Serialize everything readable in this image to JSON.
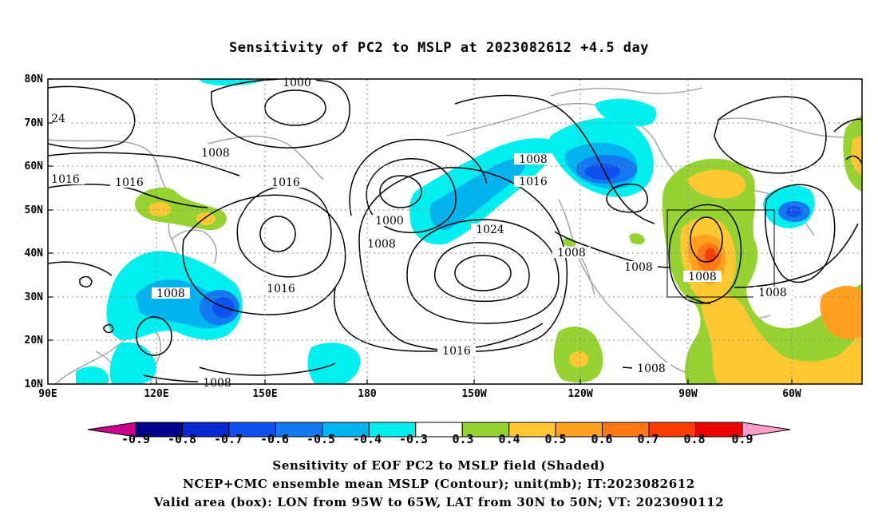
{
  "title": "Sensitivity of PC2 to MSLP at 2023082612 +4.5 day",
  "map": {
    "lat_labels": [
      "80N",
      "70N",
      "60N",
      "50N",
      "40N",
      "30N",
      "20N",
      "10N"
    ],
    "lon_labels": [
      "90E",
      "120E",
      "150E",
      "180",
      "150W",
      "120W",
      "90W",
      "60W"
    ],
    "contour_labels": [
      {
        "text": "1000"
      },
      {
        "text": "24"
      },
      {
        "text": "1008"
      },
      {
        "text": "1016"
      },
      {
        "text": "1016"
      },
      {
        "text": "1016"
      },
      {
        "text": "1000"
      },
      {
        "text": "1008"
      },
      {
        "text": "1008"
      },
      {
        "text": "1016"
      },
      {
        "text": "1024"
      },
      {
        "text": "1008"
      },
      {
        "text": "1008"
      },
      {
        "text": "1016"
      },
      {
        "text": "1008"
      },
      {
        "text": "1016"
      },
      {
        "text": "1008"
      },
      {
        "text": "1008"
      },
      {
        "text": "1008"
      },
      {
        "text": "1008"
      }
    ],
    "valid_box": {
      "lon_range": "95W to 65W",
      "lat_range": "30N to 50N"
    }
  },
  "colorbar": {
    "labels": [
      "-0.9",
      "-0.8",
      "-0.7",
      "-0.6",
      "-0.5",
      "-0.4",
      "-0.3",
      "0.3",
      "0.4",
      "0.5",
      "0.6",
      "0.7",
      "0.8",
      "0.9"
    ],
    "colors": [
      "#00008c",
      "#0a28d2",
      "#0f50f0",
      "#1478f0",
      "#00b4f0",
      "#00f0f0",
      "#ffffff",
      "#96d232",
      "#ffc832",
      "#ffa01e",
      "#ff7814",
      "#ff3c00",
      "#f00000"
    ],
    "low_arrow_color": "#c8008c",
    "high_arrow_color": "#ff9ec8"
  },
  "captions": {
    "line1": "Sensitivity of EOF PC2 to MSLP field (Shaded)",
    "line2": "NCEP+CMC ensemble mean MSLP (Contour); unit(mb); IT:2023082612",
    "line3": "Valid area (box): LON from 95W to 65W, LAT from 30N to 50N; VT: 2023090112"
  }
}
